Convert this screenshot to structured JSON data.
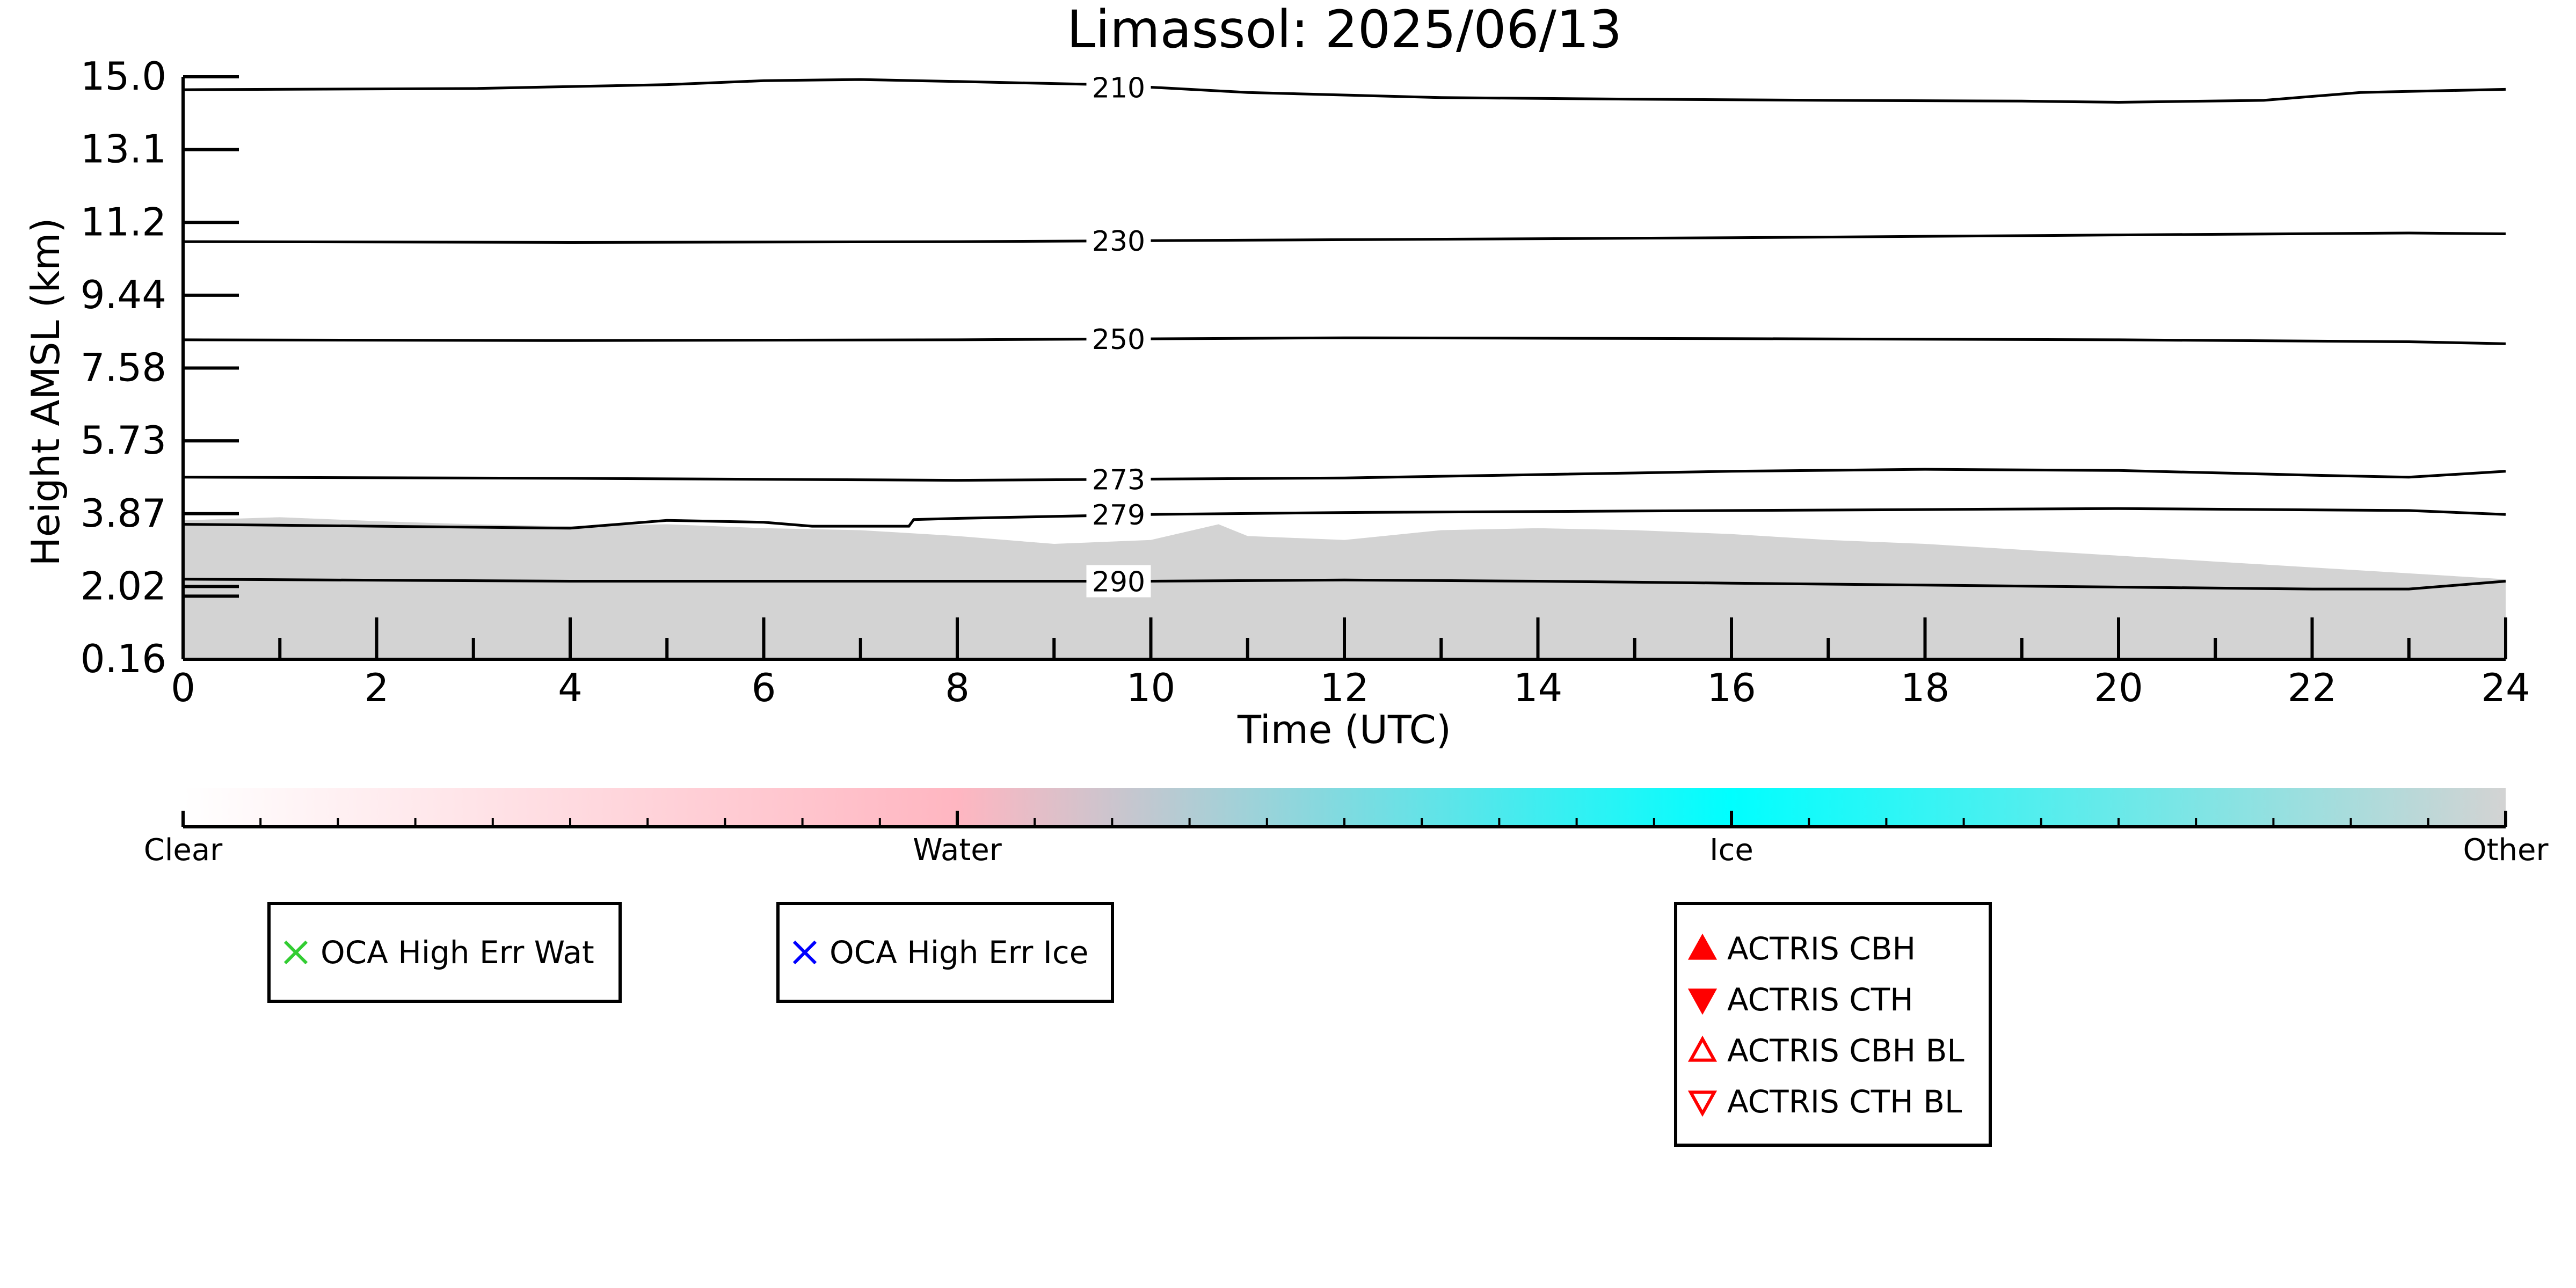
{
  "chart_data": {
    "type": "heatmap",
    "title": "Limassol: 2025/06/13",
    "xlabel": "Time (UTC)",
    "ylabel": "Height AMSL (km)",
    "xlim": [
      0,
      24
    ],
    "ylim": [
      0.16,
      15.0
    ],
    "x_ticks": [
      "0",
      "2",
      "4",
      "6",
      "8",
      "10",
      "12",
      "14",
      "16",
      "18",
      "20",
      "22",
      "24"
    ],
    "y_ticks": [
      "0.16",
      "2.02",
      "3.87",
      "5.73",
      "7.58",
      "9.44",
      "11.2",
      "13.1",
      "15.0"
    ],
    "field": {
      "name": "Other",
      "color": "#d3d3d3",
      "base_km": 0.16,
      "top_km": [
        [
          0,
          3.7
        ],
        [
          1,
          3.78
        ],
        [
          2,
          3.68
        ],
        [
          3,
          3.6
        ],
        [
          4,
          3.55
        ],
        [
          5,
          3.6
        ],
        [
          6,
          3.5
        ],
        [
          7,
          3.45
        ],
        [
          8,
          3.3
        ],
        [
          9,
          3.1
        ],
        [
          10,
          3.2
        ],
        [
          10.7,
          3.6
        ],
        [
          11,
          3.3
        ],
        [
          12,
          3.2
        ],
        [
          13,
          3.45
        ],
        [
          14,
          3.5
        ],
        [
          15,
          3.45
        ],
        [
          16,
          3.35
        ],
        [
          17,
          3.2
        ],
        [
          18,
          3.1
        ],
        [
          19,
          2.95
        ],
        [
          20,
          2.8
        ],
        [
          21,
          2.65
        ],
        [
          22,
          2.5
        ],
        [
          23,
          2.35
        ],
        [
          24,
          2.2
        ]
      ]
    },
    "temperature_contours": [
      {
        "label": "210",
        "points": [
          [
            0,
            14.67
          ],
          [
            3,
            14.7
          ],
          [
            5,
            14.8
          ],
          [
            6,
            14.9
          ],
          [
            7,
            14.93
          ],
          [
            8,
            14.88
          ],
          [
            9.5,
            14.8
          ],
          [
            11,
            14.6
          ],
          [
            13,
            14.47
          ],
          [
            15,
            14.43
          ],
          [
            17,
            14.4
          ],
          [
            19,
            14.38
          ],
          [
            20,
            14.35
          ],
          [
            21.5,
            14.4
          ],
          [
            22.5,
            14.6
          ],
          [
            24,
            14.68
          ]
        ]
      },
      {
        "label": "230",
        "points": [
          [
            0,
            10.8
          ],
          [
            4,
            10.78
          ],
          [
            8,
            10.8
          ],
          [
            12,
            10.85
          ],
          [
            16,
            10.9
          ],
          [
            20,
            10.97
          ],
          [
            23,
            11.02
          ],
          [
            24,
            11.0
          ]
        ]
      },
      {
        "label": "250",
        "points": [
          [
            0,
            8.3
          ],
          [
            4,
            8.28
          ],
          [
            8,
            8.3
          ],
          [
            12,
            8.35
          ],
          [
            16,
            8.33
          ],
          [
            20,
            8.3
          ],
          [
            23,
            8.25
          ],
          [
            24,
            8.2
          ]
        ]
      },
      {
        "label": "273",
        "points": [
          [
            0,
            4.8
          ],
          [
            4,
            4.77
          ],
          [
            8,
            4.72
          ],
          [
            12,
            4.78
          ],
          [
            16,
            4.95
          ],
          [
            18,
            5.0
          ],
          [
            20,
            4.97
          ],
          [
            22,
            4.85
          ],
          [
            23,
            4.8
          ],
          [
            24,
            4.95
          ]
        ]
      },
      {
        "label": "279",
        "points": [
          [
            0,
            3.6
          ],
          [
            2,
            3.55
          ],
          [
            4,
            3.5
          ],
          [
            5,
            3.7
          ],
          [
            6,
            3.65
          ],
          [
            6.5,
            3.55
          ],
          [
            7.5,
            3.55
          ],
          [
            7.55,
            3.72
          ],
          [
            8,
            3.75
          ],
          [
            10,
            3.85
          ],
          [
            12,
            3.9
          ],
          [
            16,
            3.95
          ],
          [
            20,
            4.0
          ],
          [
            23,
            3.95
          ],
          [
            24,
            3.85
          ]
        ]
      },
      {
        "label": "290",
        "points": [
          [
            0,
            2.2
          ],
          [
            4,
            2.15
          ],
          [
            8,
            2.15
          ],
          [
            10,
            2.15
          ],
          [
            12,
            2.18
          ],
          [
            14,
            2.15
          ],
          [
            16,
            2.1
          ],
          [
            18,
            2.05
          ],
          [
            20,
            2.0
          ],
          [
            22,
            1.95
          ],
          [
            23,
            1.95
          ],
          [
            24,
            2.15
          ]
        ]
      }
    ],
    "colorbar": {
      "labels": [
        "Clear",
        "Water",
        "Ice",
        "Other"
      ],
      "stops": [
        {
          "pos": 0.0,
          "color": "#ffffff"
        },
        {
          "pos": 0.333,
          "color": "#ffb6c1"
        },
        {
          "pos": 0.666,
          "color": "#00ffff"
        },
        {
          "pos": 1.0,
          "color": "#d3d3d3"
        }
      ],
      "minor_ticks": 30
    },
    "legends": [
      {
        "entries": [
          {
            "label": "OCA High Err Wat",
            "marker": "x",
            "color": "#32cd32"
          }
        ]
      },
      {
        "entries": [
          {
            "label": "OCA High Err Ice",
            "marker": "x",
            "color": "#0000ff"
          }
        ]
      },
      {
        "entries": [
          {
            "label": "ACTRIS CBH",
            "marker": "triangle-up-filled",
            "color": "#ff0000"
          },
          {
            "label": "ACTRIS CTH",
            "marker": "triangle-down-filled",
            "color": "#ff0000"
          },
          {
            "label": "ACTRIS CBH BL",
            "marker": "triangle-up-open",
            "color": "#ff0000"
          },
          {
            "label": "ACTRIS CTH BL",
            "marker": "triangle-down-open",
            "color": "#ff0000"
          }
        ]
      }
    ]
  }
}
